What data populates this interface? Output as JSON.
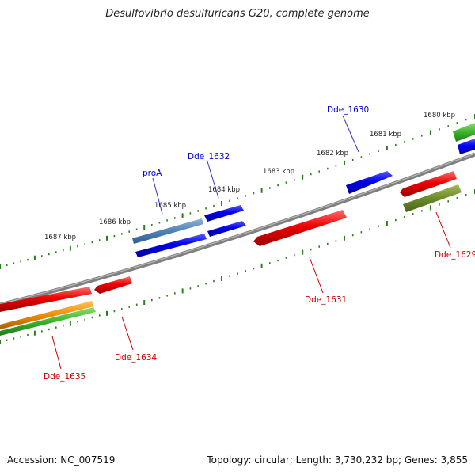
{
  "title": "Desulfovibrio desulfuricans G20, complete genome",
  "footer": {
    "accession": "Accession: NC_007519",
    "summary": "Topology: circular; Length: 3,730,232 bp; Genes: 3,855"
  },
  "colors": {
    "backbone": "#7f7f7f",
    "ticks": "#2e7d1f",
    "forward_label": "#0000cc",
    "reverse_label": "#cc0000",
    "label_line_forward": "#3333cc",
    "label_line_reverse": "#cc0000"
  },
  "scale_labels": [
    "1687 kbp",
    "1686 kbp",
    "1685 kbp",
    "1684 kbp",
    "1683 kbp",
    "1682 kbp",
    "1681 kbp",
    "1680 kbp"
  ],
  "gene_labels": {
    "proA": "proA",
    "dde_1632": "Dde_1632",
    "dde_1630": "Dde_1630",
    "dde_1629": "Dde_1629",
    "dde_1631": "Dde_1631",
    "dde_1634": "Dde_1634",
    "dde_1635": "Dde_1635"
  }
}
